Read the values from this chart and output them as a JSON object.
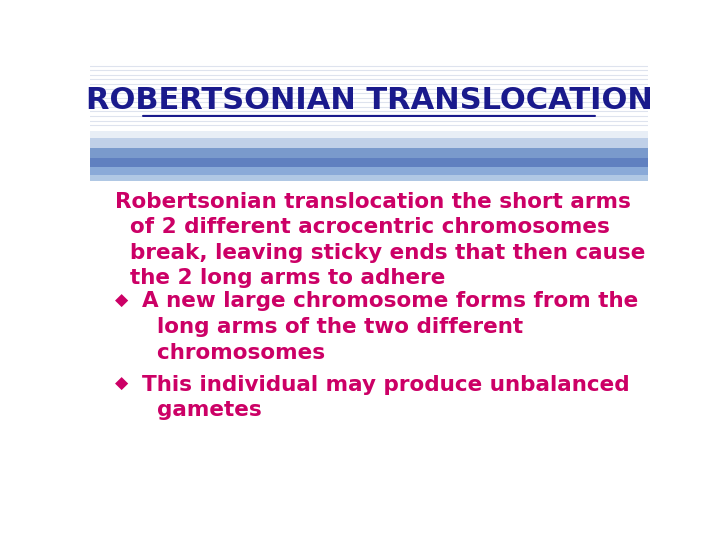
{
  "title": "ROBERTSONIAN TRANSLOCATION",
  "title_color": "#1a1a8c",
  "title_fontsize": 22,
  "bg_color": "#ffffff",
  "body_text_color": "#cc0066",
  "body_fontsize": 15.5,
  "paragraph_text": "Robertsonian translocation the short arms\n  of 2 different acrocentric chromosomes\n  break, leaving sticky ends that then cause\n  the 2 long arms to adhere",
  "bullet1": "A new large chromosome forms from the\n  long arms of the two different\n  chromosomes",
  "bullet2": "This individual may produce unbalanced\n  gametes",
  "bullet_marker": "◆",
  "font_family": "DejaVu Sans"
}
